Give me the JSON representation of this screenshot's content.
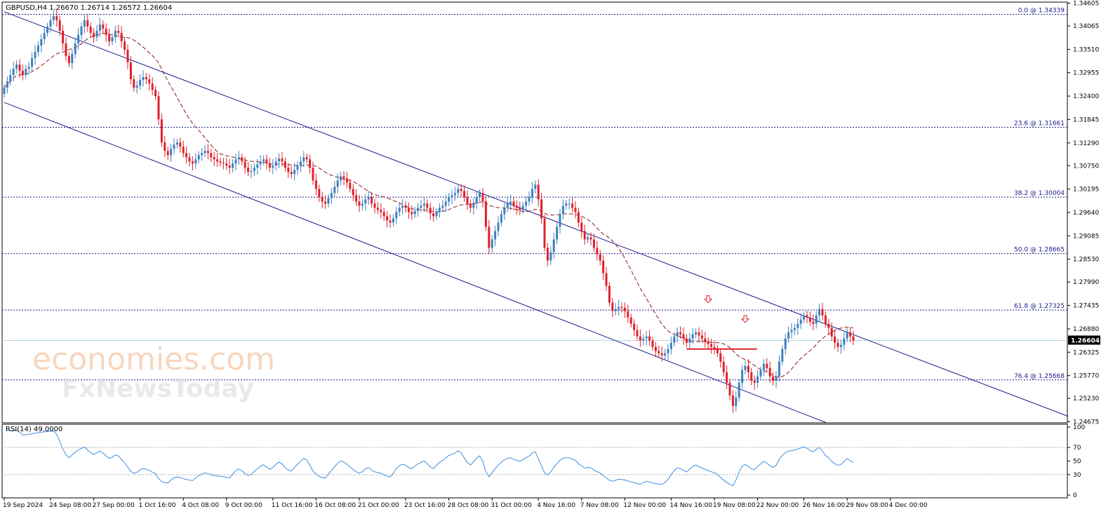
{
  "chart_data": {
    "type": "candlestick",
    "symbol_header": "GBPUSD,H4  1.26670 1.26714 1.26572 1.26604",
    "current_price": "1.26604",
    "price_axis": {
      "range": [
        1.2465,
        1.3463
      ],
      "ticks": [
        "1.34605",
        "1.34065",
        "1.33510",
        "1.32955",
        "1.32400",
        "1.31845",
        "1.31290",
        "1.30750",
        "1.30195",
        "1.29640",
        "1.29085",
        "1.28530",
        "1.27990",
        "1.27435",
        "1.26880",
        "1.26325",
        "1.25770",
        "1.25230",
        "1.24675"
      ]
    },
    "fib_levels": [
      {
        "label": "0.0 @ 1.34339",
        "value": 1.34339
      },
      {
        "label": "23.6 @ 1.31661",
        "value": 1.31661
      },
      {
        "label": "38.2 @ 1.30004",
        "value": 1.30004
      },
      {
        "label": "50.0 @ 1.28665",
        "value": 1.28665
      },
      {
        "label": "61.8 @ 1.27325",
        "value": 1.27325
      },
      {
        "label": "76.4 @ 1.25668",
        "value": 1.25668
      }
    ],
    "channel": {
      "upper": [
        [
          0,
          1.344
        ],
        [
          290,
          1.2632
        ]
      ],
      "lower": [
        [
          0,
          1.3225
        ],
        [
          266,
          1.2466
        ]
      ]
    },
    "support_line": {
      "from": 221,
      "to": 242,
      "value": 1.264
    },
    "sell_markers": [
      {
        "bar": 228,
        "price": 1.275
      },
      {
        "bar": 240,
        "price": 1.2703
      }
    ],
    "x_ticks": [
      {
        "bar": 0,
        "label": "19 Sep 2024"
      },
      {
        "bar": 15,
        "label": "24 Sep 08:00"
      },
      {
        "bar": 29,
        "label": "27 Sep 00:00"
      },
      {
        "bar": 44,
        "label": "1 Oct 16:00"
      },
      {
        "bar": 58,
        "label": "4 Oct 08:00"
      },
      {
        "bar": 72,
        "label": "9 Oct 00:00"
      },
      {
        "bar": 87,
        "label": "11 Oct 16:00"
      },
      {
        "bar": 101,
        "label": "16 Oct 08:00"
      },
      {
        "bar": 115,
        "label": "21 Oct 00:00"
      },
      {
        "bar": 130,
        "label": "23 Oct 16:00"
      },
      {
        "bar": 144,
        "label": "28 Oct 08:00"
      },
      {
        "bar": 158,
        "label": "31 Oct 00:00"
      },
      {
        "bar": 173,
        "label": "4 Nov 16:00"
      },
      {
        "bar": 187,
        "label": "7 Nov 08:00"
      },
      {
        "bar": 201,
        "label": "12 Nov 00:00"
      },
      {
        "bar": 216,
        "label": "14 Nov 16:00"
      },
      {
        "bar": 230,
        "label": "19 Nov 08:00"
      },
      {
        "bar": 244,
        "label": "22 Nov 00:00"
      },
      {
        "bar": 259,
        "label": "26 Nov 16:00"
      },
      {
        "bar": 273,
        "label": "29 Nov 08:00"
      },
      {
        "bar": 287,
        "label": "4 Dec 00:00"
      }
    ],
    "closes": [
      1.326,
      1.3275,
      1.329,
      1.3305,
      1.3315,
      1.33,
      1.329,
      1.3305,
      1.331,
      1.333,
      1.3345,
      1.336,
      1.3375,
      1.339,
      1.3405,
      1.342,
      1.343,
      1.342,
      1.3395,
      1.3365,
      1.3335,
      1.3318,
      1.334,
      1.3365,
      1.3385,
      1.3405,
      1.342,
      1.3405,
      1.339,
      1.338,
      1.3395,
      1.341,
      1.34,
      1.3385,
      1.337,
      1.338,
      1.3395,
      1.339,
      1.337,
      1.335,
      1.332,
      1.328,
      1.326,
      1.3265,
      1.3278,
      1.3285,
      1.328,
      1.327,
      1.3255,
      1.324,
      1.3185,
      1.313,
      1.311,
      1.31,
      1.3115,
      1.3125,
      1.313,
      1.312,
      1.3105,
      1.3095,
      1.3085,
      1.308,
      1.309,
      1.31,
      1.3105,
      1.311,
      1.3105,
      1.3095,
      1.309,
      1.3085,
      1.3082,
      1.308,
      1.3075,
      1.307,
      1.308,
      1.309,
      1.3095,
      1.3085,
      1.307,
      1.306,
      1.3062,
      1.307,
      1.3078,
      1.3085,
      1.309,
      1.308,
      1.307,
      1.3075,
      1.3085,
      1.3092,
      1.3085,
      1.307,
      1.306,
      1.3055,
      1.3065,
      1.3075,
      1.3085,
      1.3095,
      1.309,
      1.307,
      1.304,
      1.302,
      1.3,
      1.299,
      1.2985,
      1.2998,
      1.301,
      1.3025,
      1.304,
      1.305,
      1.3045,
      1.3035,
      1.302,
      1.3005,
      1.299,
      1.298,
      1.2985,
      1.2995,
      1.3,
      1.2985,
      1.2975,
      1.297,
      1.2965,
      1.2955,
      1.2945,
      1.294,
      1.295,
      1.2965,
      1.2975,
      1.298,
      1.2975,
      1.2965,
      1.296,
      1.2968,
      1.2975,
      1.298,
      1.2985,
      1.2975,
      1.2962,
      1.2955,
      1.2965,
      1.2975,
      1.298,
      1.299,
      1.3,
      1.3005,
      1.301,
      1.302,
      1.3015,
      1.3,
      1.2985,
      1.2975,
      1.2985,
      1.3,
      1.301,
      1.299,
      1.293,
      1.288,
      1.29,
      1.292,
      1.294,
      1.296,
      1.2975,
      1.2985,
      1.299,
      1.298,
      1.2975,
      1.297,
      1.298,
      1.299,
      1.3,
      1.302,
      1.303,
      1.2995,
      1.295,
      1.288,
      1.285,
      1.287,
      1.29,
      1.293,
      1.296,
      1.298,
      1.2985,
      1.2985,
      1.2975,
      1.2965,
      1.294,
      1.292,
      1.29,
      1.2905,
      1.29,
      1.288,
      1.2865,
      1.285,
      1.282,
      1.279,
      1.275,
      1.273,
      1.2735,
      1.274,
      1.2738,
      1.273,
      1.2715,
      1.27,
      1.2685,
      1.267,
      1.266,
      1.2665,
      1.267,
      1.266,
      1.2645,
      1.2635,
      1.263,
      1.2625,
      1.263,
      1.264,
      1.2655,
      1.267,
      1.268,
      1.2675,
      1.2665,
      1.2655,
      1.2665,
      1.2675,
      1.268,
      1.2672,
      1.2665,
      1.2658,
      1.2652,
      1.2645,
      1.264,
      1.263,
      1.261,
      1.2585,
      1.256,
      1.253,
      1.2505,
      1.2525,
      1.256,
      1.259,
      1.26,
      1.2585,
      1.2565,
      1.256,
      1.2575,
      1.259,
      1.2605,
      1.2595,
      1.2575,
      1.2565,
      1.2575,
      1.261,
      1.264,
      1.2665,
      1.268,
      1.2685,
      1.269,
      1.27,
      1.271,
      1.272,
      1.2715,
      1.2705,
      1.27,
      1.272,
      1.2735,
      1.272,
      1.27,
      1.269,
      1.267,
      1.2655,
      1.2645,
      1.265,
      1.2665,
      1.268,
      1.267,
      1.266
    ]
  },
  "rsi": {
    "label": "RSI(14) 49.0000",
    "ticks": [
      "100",
      "70",
      "50",
      "30",
      "0"
    ],
    "levels": [
      70,
      30
    ]
  },
  "watermark": {
    "line1": "economies.com",
    "line2": "FxNewsToday"
  }
}
